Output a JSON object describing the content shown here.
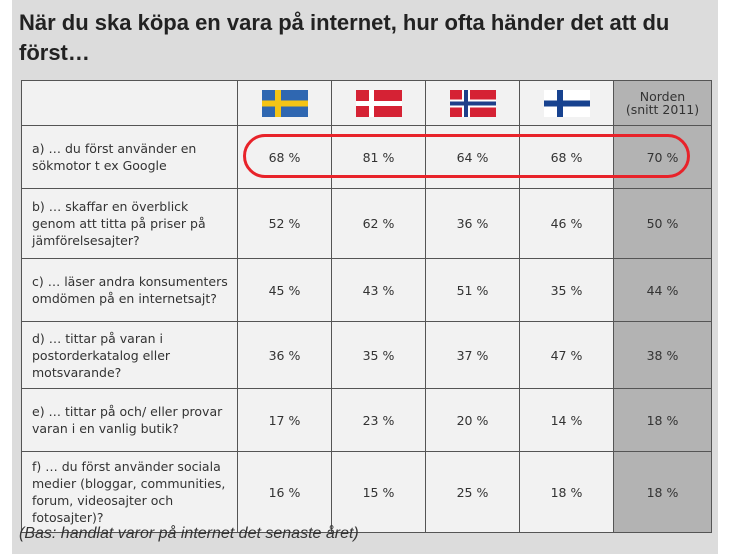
{
  "title": "När du ska köpa en vara på internet, hur ofta händer det att du först…",
  "footnote": "(Bas: handlat varor på internet det senaste året)",
  "columns": {
    "sweden_flag": "sweden-flag-icon",
    "denmark_flag": "denmark-flag-icon",
    "norway_flag": "norway-flag-icon",
    "finland_flag": "finland-flag-icon",
    "nordic_label": "Norden",
    "nordic_sub": "(snitt 2011)"
  },
  "rows": [
    {
      "question": "a) … du först använder en sökmotor t ex Google",
      "values": [
        "68 %",
        "81 %",
        "64 %",
        "68 %",
        "70 %"
      ]
    },
    {
      "question": "b) … skaffar en överblick genom att titta på priser på jämförelsesajter?",
      "values": [
        "52 %",
        "62 %",
        "36 %",
        "46 %",
        "50 %"
      ]
    },
    {
      "question": "c) … läser andra konsumenters omdömen på en internetsajt?",
      "values": [
        "45 %",
        "43 %",
        "51 %",
        "35 %",
        "44 %"
      ]
    },
    {
      "question": "d) … tittar på varan i postorderkatalog eller motsvarande?",
      "values": [
        "36 %",
        "35 %",
        "37 %",
        "47 %",
        "38 %"
      ]
    },
    {
      "question": "e) … tittar på och/ eller provar varan i en vanlig butik?",
      "values": [
        "17 %",
        "23 %",
        "20 %",
        "14 %",
        "18 %"
      ]
    },
    {
      "question": "f) … du först använder sociala medier (bloggar, communities, forum, videosajter och fotosajter)?",
      "values": [
        "16 %",
        "15 %",
        "25 %",
        "18 %",
        "18 %"
      ]
    }
  ],
  "colors": {
    "highlight": "#e8232a",
    "nordic_column": "#b3b3b3",
    "cell": "#f2f2f2",
    "panel": "#dcdcdc"
  },
  "chart_data": {
    "type": "table",
    "title": "När du ska köpa en vara på internet, hur ofta händer det att du först…",
    "columns": [
      "Sverige (flagga)",
      "Danmark (flagga)",
      "Norge (flagga)",
      "Finland (flagga)",
      "Norden (snitt 2011)"
    ],
    "categories": [
      "a",
      "b",
      "c",
      "d",
      "e",
      "f"
    ],
    "series": [
      {
        "values": [
          68,
          52,
          45,
          36,
          17,
          16
        ]
      },
      {
        "values": [
          81,
          62,
          43,
          35,
          23,
          15
        ]
      },
      {
        "values": [
          64,
          36,
          51,
          37,
          20,
          25
        ]
      },
      {
        "values": [
          68,
          46,
          35,
          47,
          14,
          18
        ]
      },
      {
        "name": "Norden (snitt 2011)",
        "values": [
          70,
          50,
          44,
          38,
          18,
          18
        ]
      }
    ],
    "highlighted_row": "a"
  }
}
